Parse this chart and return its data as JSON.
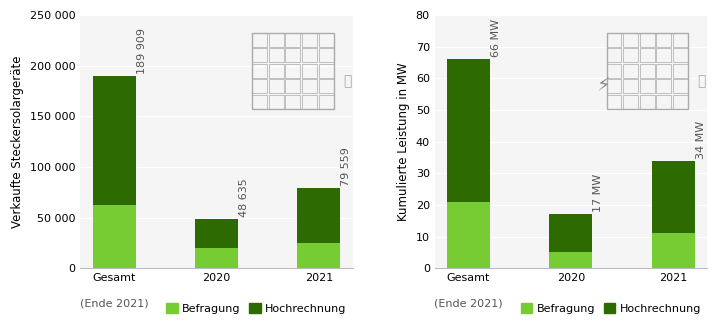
{
  "left": {
    "categories": [
      "Gesamt",
      "2020",
      "2021"
    ],
    "befragung": [
      62000,
      20000,
      25000
    ],
    "hochrechnung": [
      127909,
      28635,
      54559
    ],
    "totals": [
      "189 909",
      "48 635",
      "79 559"
    ],
    "ylabel": "Verkaufte Steckersolargeräte",
    "ylim": [
      0,
      250000
    ],
    "yticks": [
      0,
      50000,
      100000,
      150000,
      200000,
      250000
    ],
    "ytick_labels": [
      "0",
      "50 000",
      "100 000",
      "150 000",
      "200 000",
      "250 000"
    ]
  },
  "right": {
    "categories": [
      "Gesamt",
      "2020",
      "2021"
    ],
    "befragung": [
      21,
      5,
      11
    ],
    "hochrechnung": [
      45,
      12,
      23
    ],
    "totals": [
      "66 MW",
      "17 MW",
      "34 MW"
    ],
    "ylabel": "Kumulierte Leistung in MW",
    "ylim": [
      0,
      80
    ],
    "yticks": [
      0,
      10,
      20,
      30,
      40,
      50,
      60,
      70,
      80
    ],
    "ytick_labels": [
      "0",
      "10",
      "20",
      "30",
      "40",
      "50",
      "60",
      "70",
      "80"
    ]
  },
  "color_befragung": "#77cc33",
  "color_hochrechnung": "#2d6a00",
  "bar_width": 0.42,
  "legend_labels": [
    "Befragung",
    "Hochrechnung"
  ],
  "background_color": "#ffffff",
  "plot_bg_color": "#f5f5f5",
  "grid_color": "#ffffff",
  "label_fontsize": 8,
  "tick_fontsize": 8,
  "ylabel_fontsize": 8.5,
  "annotation_color": "#555555"
}
